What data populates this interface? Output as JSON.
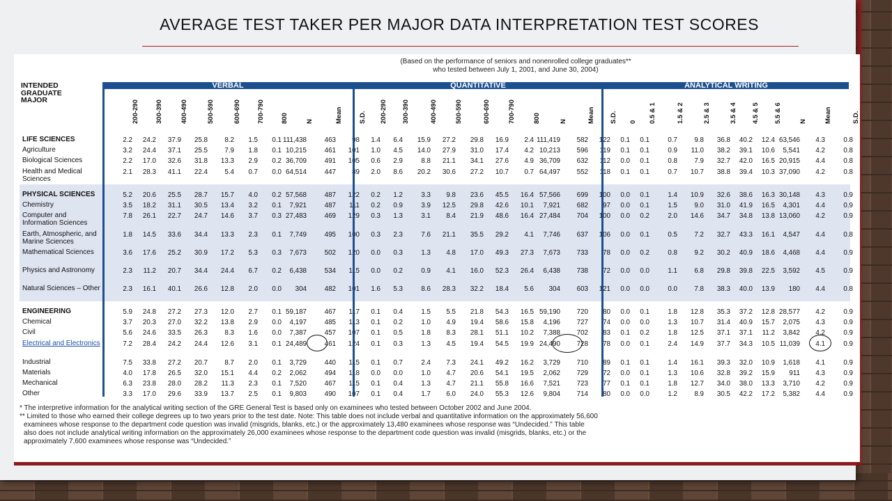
{
  "slide": {
    "title": "AVERAGE TEST TAKER PER MAJOR DATA INTERPRETATION TEST SCORES"
  },
  "document": {
    "note_line1": "(Based on the performance of seniors and nonenrolled college graduates**",
    "note_line2": "who tested between July 1, 2001, and June 30, 2004)",
    "major_header": "INTENDED GRADUATE MAJOR",
    "sections": {
      "verbal": "VERBAL",
      "quantitative": "QUANTITATIVE",
      "analytical": "ANALYTICAL WRITING"
    },
    "columns": {
      "verbal": [
        "200-290",
        "300-390",
        "400-490",
        "500-590",
        "600-690",
        "700-790",
        "800",
        "N",
        "Mean",
        "S.D."
      ],
      "quantitative": [
        "200-290",
        "300-390",
        "400-490",
        "500-590",
        "600-690",
        "700-790",
        "800",
        "N",
        "Mean",
        "S.D."
      ],
      "analytical": [
        "0",
        "0.5 & 1",
        "1.5 & 2",
        "2.5 & 3",
        "3.5 & 4",
        "4.5 & 5",
        "5.5 & 6",
        "N",
        "Mean",
        "S.D."
      ]
    },
    "rows": [
      {
        "label": "LIFE SCIENCES",
        "cat": true,
        "v": [
          "2.2",
          "24.2",
          "37.9",
          "25.8",
          "8.2",
          "1.5",
          "0.1",
          "111,438",
          "463",
          "98"
        ],
        "q": [
          "1.4",
          "6.4",
          "15.9",
          "27.2",
          "29.8",
          "16.9",
          "2.4",
          "111,419",
          "582",
          "122"
        ],
        "w": [
          "0.1",
          "0.1",
          "0.7",
          "9.8",
          "36.8",
          "40.2",
          "12.4",
          "63,546",
          "4.3",
          "0.8"
        ]
      },
      {
        "label": "Agriculture",
        "v": [
          "3.2",
          "24.4",
          "37.1",
          "25.5",
          "7.9",
          "1.8",
          "0.1",
          "10,215",
          "461",
          "101"
        ],
        "q": [
          "1.0",
          "4.5",
          "14.0",
          "27.9",
          "31.0",
          "17.4",
          "4.2",
          "10,213",
          "596",
          "119"
        ],
        "w": [
          "0.1",
          "0.1",
          "0.9",
          "11.0",
          "38.2",
          "39.1",
          "10.6",
          "5,541",
          "4.2",
          "0.8"
        ]
      },
      {
        "label": "Biological Sciences",
        "v": [
          "2.2",
          "17.0",
          "32.6",
          "31.8",
          "13.3",
          "2.9",
          "0.2",
          "36,709",
          "491",
          "105"
        ],
        "q": [
          "0.6",
          "2.9",
          "8.8",
          "21.1",
          "34.1",
          "27.6",
          "4.9",
          "36,709",
          "632",
          "112"
        ],
        "w": [
          "0.0",
          "0.1",
          "0.8",
          "7.9",
          "32.7",
          "42.0",
          "16.5",
          "20,915",
          "4.4",
          "0.8"
        ]
      },
      {
        "label": "Health and Medical Sciences",
        "v": [
          "2.1",
          "28.3",
          "41.1",
          "22.4",
          "5.4",
          "0.7",
          "0.0",
          "64,514",
          "447",
          "89"
        ],
        "q": [
          "2.0",
          "8.6",
          "20.2",
          "30.6",
          "27.2",
          "10.7",
          "0.7",
          "64,497",
          "552",
          "118"
        ],
        "w": [
          "0.1",
          "0.1",
          "0.7",
          "10.7",
          "38.8",
          "39.4",
          "10.3",
          "37,090",
          "4.2",
          "0.8"
        ]
      },
      {
        "label": "PHYSICAL SCIENCES",
        "cat": true,
        "v": [
          "5.2",
          "20.6",
          "25.5",
          "28.7",
          "15.7",
          "4.0",
          "0.2",
          "57,568",
          "487",
          "122"
        ],
        "q": [
          "0.2",
          "1.2",
          "3.3",
          "9.8",
          "23.6",
          "45.5",
          "16.4",
          "57,566",
          "699",
          "100"
        ],
        "w": [
          "0.0",
          "0.1",
          "1.4",
          "10.9",
          "32.6",
          "38.6",
          "16.3",
          "30,148",
          "4.3",
          "0.9"
        ]
      },
      {
        "label": "Chemistry",
        "v": [
          "3.5",
          "18.2",
          "31.1",
          "30.5",
          "13.4",
          "3.2",
          "0.1",
          "7,921",
          "487",
          "111"
        ],
        "q": [
          "0.2",
          "0.9",
          "3.9",
          "12.5",
          "29.8",
          "42.6",
          "10.1",
          "7,921",
          "682",
          "97"
        ],
        "w": [
          "0.0",
          "0.1",
          "1.5",
          "9.0",
          "31.0",
          "41.9",
          "16.5",
          "4,301",
          "4.4",
          "0.9"
        ]
      },
      {
        "label": "Computer and Information Sciences",
        "v": [
          "7.8",
          "26.1",
          "22.7",
          "24.7",
          "14.6",
          "3.7",
          "0.3",
          "27,483",
          "469",
          "129"
        ],
        "q": [
          "0.3",
          "1.3",
          "3.1",
          "8.4",
          "21.9",
          "48.6",
          "16.4",
          "27,484",
          "704",
          "100"
        ],
        "w": [
          "0.0",
          "0.2",
          "2.0",
          "14.6",
          "34.7",
          "34.8",
          "13.8",
          "13,060",
          "4.2",
          "0.9"
        ]
      },
      {
        "label": "Earth, Atmospheric, and Marine Sciences",
        "v": [
          "1.8",
          "14.5",
          "33.6",
          "34.4",
          "13.3",
          "2.3",
          "0.1",
          "7,749",
          "495",
          "100"
        ],
        "q": [
          "0.3",
          "2.3",
          "7.6",
          "21.1",
          "35.5",
          "29.2",
          "4.1",
          "7,746",
          "637",
          "106"
        ],
        "w": [
          "0.0",
          "0.1",
          "0.5",
          "7.2",
          "32.7",
          "43.3",
          "16.1",
          "4,547",
          "4.4",
          "0.8"
        ]
      },
      {
        "label": "Mathematical Sciences",
        "v": [
          "3.6",
          "17.6",
          "25.2",
          "30.9",
          "17.2",
          "5.3",
          "0.3",
          "7,673",
          "502",
          "120"
        ],
        "q": [
          "0.0",
          "0.3",
          "1.3",
          "4.8",
          "17.0",
          "49.3",
          "27.3",
          "7,673",
          "733",
          "78"
        ],
        "w": [
          "0.0",
          "0.2",
          "0.8",
          "9.2",
          "30.2",
          "40.9",
          "18.6",
          "4,468",
          "4.4",
          "0.9"
        ]
      },
      {
        "label": "Physics and Astronomy",
        "v": [
          "2.3",
          "11.2",
          "20.7",
          "34.4",
          "24.4",
          "6.7",
          "0.2",
          "6,438",
          "534",
          "115"
        ],
        "q": [
          "0.0",
          "0.2",
          "0.9",
          "4.1",
          "16.0",
          "52.3",
          "26.4",
          "6,438",
          "738",
          "72"
        ],
        "w": [
          "0.0",
          "0.0",
          "1.1",
          "6.8",
          "29.8",
          "39.8",
          "22.5",
          "3,592",
          "4.5",
          "0.9"
        ]
      },
      {
        "label": "Natural Sciences – Other",
        "v": [
          "2.3",
          "16.1",
          "40.1",
          "26.6",
          "12.8",
          "2.0",
          "0.0",
          "304",
          "482",
          "101"
        ],
        "q": [
          "1.6",
          "5.3",
          "8.6",
          "28.3",
          "32.2",
          "18.4",
          "5.6",
          "304",
          "603",
          "121"
        ],
        "w": [
          "0.0",
          "0.0",
          "0.0",
          "7.8",
          "38.3",
          "40.0",
          "13.9",
          "180",
          "4.4",
          "0.8"
        ]
      },
      {
        "label": "ENGINEERING",
        "cat": true,
        "v": [
          "5.9",
          "24.8",
          "27.2",
          "27.3",
          "12.0",
          "2.7",
          "0.1",
          "59,187",
          "467",
          "117"
        ],
        "q": [
          "0.1",
          "0.4",
          "1.5",
          "5.5",
          "21.8",
          "54.3",
          "16.5",
          "59,190",
          "720",
          "80"
        ],
        "w": [
          "0.0",
          "0.1",
          "1.8",
          "12.8",
          "35.3",
          "37.2",
          "12.8",
          "28,577",
          "4.2",
          "0.9"
        ]
      },
      {
        "label": "Chemical",
        "v": [
          "3.7",
          "20.3",
          "27.0",
          "32.2",
          "13.8",
          "2.9",
          "0.0",
          "4,197",
          "485",
          "113"
        ],
        "q": [
          "0.1",
          "0.2",
          "1.0",
          "4.9",
          "19.4",
          "58.6",
          "15.8",
          "4,196",
          "727",
          "74"
        ],
        "w": [
          "0.0",
          "0.0",
          "1.3",
          "10.7",
          "31.4",
          "40.9",
          "15.7",
          "2,075",
          "4.3",
          "0.9"
        ]
      },
      {
        "label": "Civil",
        "v": [
          "5.6",
          "24.6",
          "33.5",
          "26.3",
          "8.3",
          "1.6",
          "0.0",
          "7,387",
          "457",
          "107"
        ],
        "q": [
          "0.1",
          "0.5",
          "1.8",
          "8.3",
          "28.1",
          "51.1",
          "10.2",
          "7,388",
          "702",
          "83"
        ],
        "w": [
          "0.1",
          "0.2",
          "1.8",
          "12.5",
          "37.1",
          "37.1",
          "11.2",
          "3,842",
          "4.2",
          "0.9"
        ]
      },
      {
        "label": "Electrical and Electronics",
        "hl": true,
        "v": [
          "7.2",
          "28.4",
          "24.2",
          "24.4",
          "12.6",
          "3.1",
          "0.1",
          "24,489",
          "461",
          "124"
        ],
        "q": [
          "0.1",
          "0.3",
          "1.3",
          "4.5",
          "19.4",
          "54.5",
          "19.9",
          "24,490",
          "728",
          "78"
        ],
        "w": [
          "0.0",
          "0.1",
          "2.4",
          "14.9",
          "37.7",
          "34.3",
          "10.5",
          "11,039",
          "4.1",
          "0.9"
        ]
      },
      {
        "label": "Industrial",
        "v": [
          "7.5",
          "33.8",
          "27.2",
          "20.7",
          "8.7",
          "2.0",
          "0.1",
          "3,729",
          "440",
          "115"
        ],
        "q": [
          "0.1",
          "0.7",
          "2.4",
          "7.3",
          "24.1",
          "49.2",
          "16.2",
          "3,729",
          "710",
          "89"
        ],
        "w": [
          "0.1",
          "0.1",
          "1.4",
          "16.1",
          "39.3",
          "32.0",
          "10.9",
          "1,618",
          "4.1",
          "0.9"
        ]
      },
      {
        "label": "Materials",
        "v": [
          "4.0",
          "17.8",
          "26.5",
          "32.0",
          "15.1",
          "4.4",
          "0.2",
          "2,062",
          "494",
          "118"
        ],
        "q": [
          "0.0",
          "0.0",
          "1.0",
          "4.7",
          "20.6",
          "54.1",
          "19.5",
          "2,062",
          "729",
          "72"
        ],
        "w": [
          "0.0",
          "0.1",
          "1.3",
          "10.6",
          "32.8",
          "39.2",
          "15.9",
          "911",
          "4.3",
          "0.9"
        ]
      },
      {
        "label": "Mechanical",
        "v": [
          "6.3",
          "23.8",
          "28.0",
          "28.2",
          "11.3",
          "2.3",
          "0.1",
          "7,520",
          "467",
          "115"
        ],
        "q": [
          "0.1",
          "0.4",
          "1.3",
          "4.7",
          "21.1",
          "55.8",
          "16.6",
          "7,521",
          "723",
          "77"
        ],
        "w": [
          "0.1",
          "0.1",
          "1.8",
          "12.7",
          "34.0",
          "38.0",
          "13.3",
          "3,710",
          "4.2",
          "0.9"
        ]
      },
      {
        "label": "Other",
        "v": [
          "3.3",
          "17.0",
          "29.6",
          "33.9",
          "13.7",
          "2.5",
          "0.1",
          "9,803",
          "490",
          "107"
        ],
        "q": [
          "0.1",
          "0.4",
          "1.7",
          "6.0",
          "24.0",
          "55.3",
          "12.6",
          "9,804",
          "714",
          "80"
        ],
        "w": [
          "0.0",
          "0.0",
          "1.2",
          "8.9",
          "30.5",
          "42.2",
          "17.2",
          "5,382",
          "4.4",
          "0.9"
        ]
      }
    ],
    "footnotes": [
      "* The interpretive information for the analytical writing section of the GRE General Test is based only on examinees who tested between October 2002 and June 2004.",
      "** Limited to those who earned their college degrees up to two years prior to the test date. Note: This table does not include verbal and quantitative information on the approximately 56,600",
      "examinees whose response to the department code question was invalid (misgrids, blanks, etc.) or the approximately 13,480 examinees whose response was “Undecided.” This table",
      "also does not include analytical writing information on the approximately 26,000 examinees whose response to the department code question was invalid (misgrids, blanks, etc.) or the",
      "approximately 7,600 examinees whose response was “Undecided.”"
    ]
  }
}
